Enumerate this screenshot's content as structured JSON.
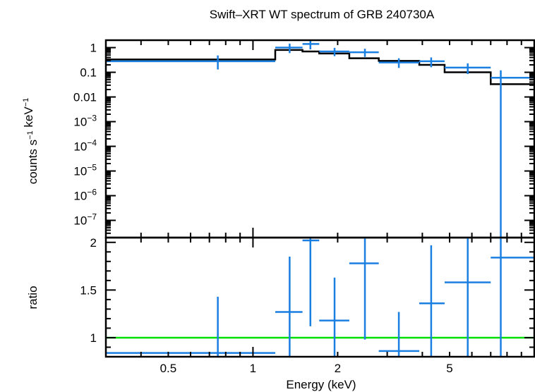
{
  "chart_data": {
    "title": "Swift–XRT WT spectrum of GRB 240730A",
    "x_axis": {
      "label": "Energy (keV)",
      "scale": "log",
      "range": [
        0.3,
        10
      ],
      "tick_labels": [
        {
          "value": 0.5,
          "label": "0.5"
        },
        {
          "value": 1,
          "label": "1"
        },
        {
          "value": 2,
          "label": "2"
        },
        {
          "value": 5,
          "label": "5"
        }
      ]
    },
    "panels": [
      {
        "type": "scatter",
        "ylabel": "counts s⁻¹ keV⁻¹",
        "yscale": "log",
        "ylim": [
          2e-08,
          2
        ],
        "y_tick_labels": [
          {
            "value": 1,
            "label": "1"
          },
          {
            "value": 0.1,
            "label": "0.1"
          },
          {
            "value": 0.01,
            "label": "0.01"
          },
          {
            "value": 0.001,
            "base": "10",
            "exp": "−3"
          },
          {
            "value": 0.0001,
            "base": "10",
            "exp": "−4"
          },
          {
            "value": 1e-05,
            "base": "10",
            "exp": "−5"
          },
          {
            "value": 1e-06,
            "base": "10",
            "exp": "−6"
          },
          {
            "value": 1e-07,
            "base": "10",
            "exp": "−7"
          }
        ],
        "data_color": "#1a7fe0",
        "model_color": "#000000",
        "data": [
          {
            "x": 0.75,
            "xlo": 0.3,
            "xhi": 1.2,
            "y": 0.28,
            "ylo": 0.13,
            "yhi": 0.48
          },
          {
            "x": 1.35,
            "xlo": 1.2,
            "xhi": 1.5,
            "y": 1.0,
            "ylo": 0.6,
            "yhi": 1.45
          },
          {
            "x": 1.6,
            "xlo": 1.5,
            "xhi": 1.72,
            "y": 1.4,
            "ylo": 0.85,
            "yhi": 2.0
          },
          {
            "x": 1.95,
            "xlo": 1.72,
            "xhi": 2.2,
            "y": 0.7,
            "ylo": 0.45,
            "yhi": 0.98
          },
          {
            "x": 2.5,
            "xlo": 2.2,
            "xhi": 2.8,
            "y": 0.65,
            "ylo": 0.42,
            "yhi": 0.9
          },
          {
            "x": 3.3,
            "xlo": 2.8,
            "xhi": 3.9,
            "y": 0.25,
            "ylo": 0.15,
            "yhi": 0.37
          },
          {
            "x": 4.3,
            "xlo": 3.9,
            "xhi": 4.8,
            "y": 0.28,
            "ylo": 0.16,
            "yhi": 0.4
          },
          {
            "x": 5.8,
            "xlo": 4.8,
            "xhi": 7.0,
            "y": 0.155,
            "ylo": 0.085,
            "yhi": 0.23
          },
          {
            "x": 7.6,
            "xlo": 7.0,
            "xhi": 10.0,
            "y": 0.06,
            "ylo": 2e-08,
            "yhi": 0.12
          }
        ],
        "model_steps": [
          {
            "xlo": 0.3,
            "xhi": 1.2,
            "y": 0.33
          },
          {
            "xlo": 1.2,
            "xhi": 1.5,
            "y": 0.8
          },
          {
            "xlo": 1.5,
            "xhi": 1.72,
            "y": 0.7
          },
          {
            "xlo": 1.72,
            "xhi": 2.2,
            "y": 0.58
          },
          {
            "xlo": 2.2,
            "xhi": 2.8,
            "y": 0.37
          },
          {
            "xlo": 2.8,
            "xhi": 3.9,
            "y": 0.29
          },
          {
            "xlo": 3.9,
            "xhi": 4.8,
            "y": 0.2
          },
          {
            "xlo": 4.8,
            "xhi": 7.0,
            "y": 0.1
          },
          {
            "xlo": 7.0,
            "xhi": 10.0,
            "y": 0.033
          }
        ]
      },
      {
        "type": "scatter",
        "ylabel": "ratio",
        "yscale": "linear",
        "ylim": [
          0.8,
          2.05
        ],
        "y_tick_labels": [
          {
            "value": 1,
            "label": "1"
          },
          {
            "value": 1.5,
            "label": "1.5"
          },
          {
            "value": 2,
            "label": "2"
          }
        ],
        "data_color": "#1a7fe0",
        "reference_line": {
          "y": 1,
          "color": "#00dd00"
        },
        "data": [
          {
            "x": 0.75,
            "xlo": 0.3,
            "xhi": 1.2,
            "y": 0.84,
            "ylo": 0.8,
            "yhi": 1.43
          },
          {
            "x": 1.35,
            "xlo": 1.2,
            "xhi": 1.5,
            "y": 1.27,
            "ylo": 0.8,
            "yhi": 1.85
          },
          {
            "x": 1.6,
            "xlo": 1.5,
            "xhi": 1.72,
            "y": 2.02,
            "ylo": 1.12,
            "yhi": 2.05
          },
          {
            "x": 1.95,
            "xlo": 1.72,
            "xhi": 2.2,
            "y": 1.18,
            "ylo": 0.8,
            "yhi": 1.63
          },
          {
            "x": 2.5,
            "xlo": 2.2,
            "xhi": 2.8,
            "y": 1.78,
            "ylo": 0.98,
            "yhi": 2.05
          },
          {
            "x": 3.3,
            "xlo": 2.8,
            "xhi": 3.9,
            "y": 0.86,
            "ylo": 0.8,
            "yhi": 1.27
          },
          {
            "x": 4.3,
            "xlo": 3.9,
            "xhi": 4.8,
            "y": 1.36,
            "ylo": 0.8,
            "yhi": 1.97
          },
          {
            "x": 5.8,
            "xlo": 4.8,
            "xhi": 7.0,
            "y": 1.58,
            "ylo": 0.8,
            "yhi": 2.05
          },
          {
            "x": 7.6,
            "xlo": 7.0,
            "xhi": 10.0,
            "y": 1.84,
            "ylo": 0.8,
            "yhi": 2.05
          }
        ]
      }
    ]
  }
}
